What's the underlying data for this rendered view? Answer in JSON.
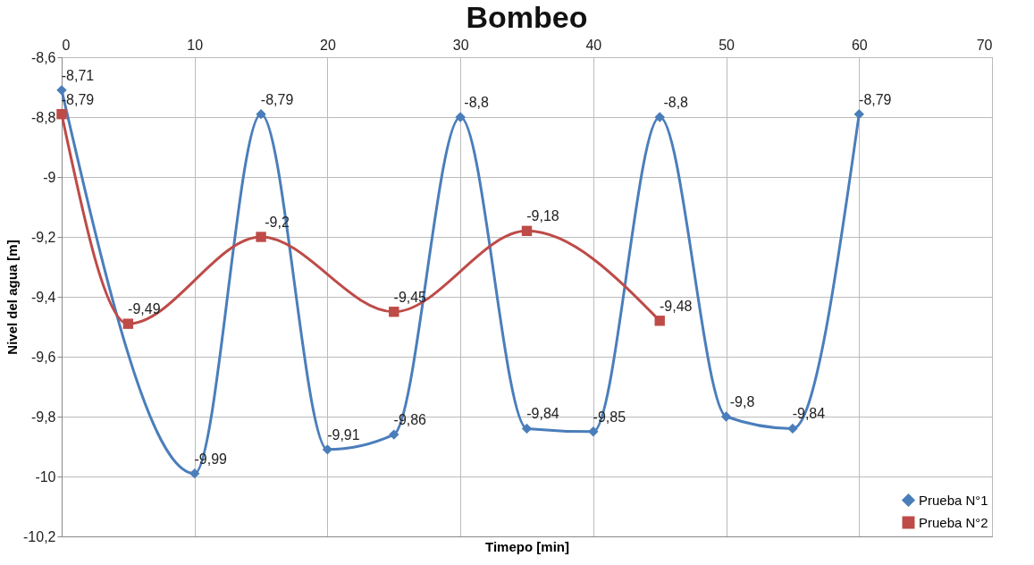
{
  "chart_data": {
    "type": "line",
    "title": "Bombeo",
    "xlabel": "Timepo [min]",
    "ylabel": "Nivel del agua [m]",
    "xlim": [
      0,
      70
    ],
    "xticks": [
      0,
      10,
      20,
      30,
      40,
      50,
      60,
      70
    ],
    "ylim": [
      -10.2,
      -8.6
    ],
    "yticks": [
      {
        "value": -10.2,
        "label": "-10,2"
      },
      {
        "value": -10,
        "label": "-10"
      },
      {
        "value": -9.8,
        "label": "-9,8"
      },
      {
        "value": -9.6,
        "label": "-9,6"
      },
      {
        "value": -9.4,
        "label": "-9,4"
      },
      {
        "value": -9.2,
        "label": "-9,2"
      },
      {
        "value": -9,
        "label": "-9"
      },
      {
        "value": -8.8,
        "label": "-8,8"
      },
      {
        "value": -8.6,
        "label": "-8,6"
      }
    ],
    "grid": true,
    "legend": "bottom right",
    "series": [
      {
        "name": "Prueba N°1",
        "color": "#4a7ebb",
        "marker": "diamond",
        "x": [
          0,
          10,
          15,
          20,
          25,
          30,
          35,
          40,
          45,
          50,
          55,
          60
        ],
        "values": [
          -8.71,
          -9.99,
          -8.79,
          -9.91,
          -9.86,
          -8.8,
          -9.84,
          -9.85,
          -8.8,
          -9.8,
          -9.84,
          -8.79
        ],
        "value_labels": [
          "-8,71",
          "-9,99",
          "-8,79",
          "-9,91",
          "-9,86",
          "-8,8",
          "-9,84",
          "-9,85",
          "-8,8",
          "-9,8",
          "-9,84",
          "-8,79"
        ]
      },
      {
        "name": "Prueba N°2",
        "color": "#be4b48",
        "marker": "square",
        "x": [
          0,
          5,
          15,
          25,
          35,
          45
        ],
        "values": [
          -8.79,
          -9.49,
          -9.2,
          -9.45,
          -9.18,
          -9.48
        ],
        "value_labels": [
          "-8,79",
          "-9,49",
          "-9,2",
          "-9,45",
          "-9,18",
          "-9,48"
        ]
      }
    ]
  }
}
